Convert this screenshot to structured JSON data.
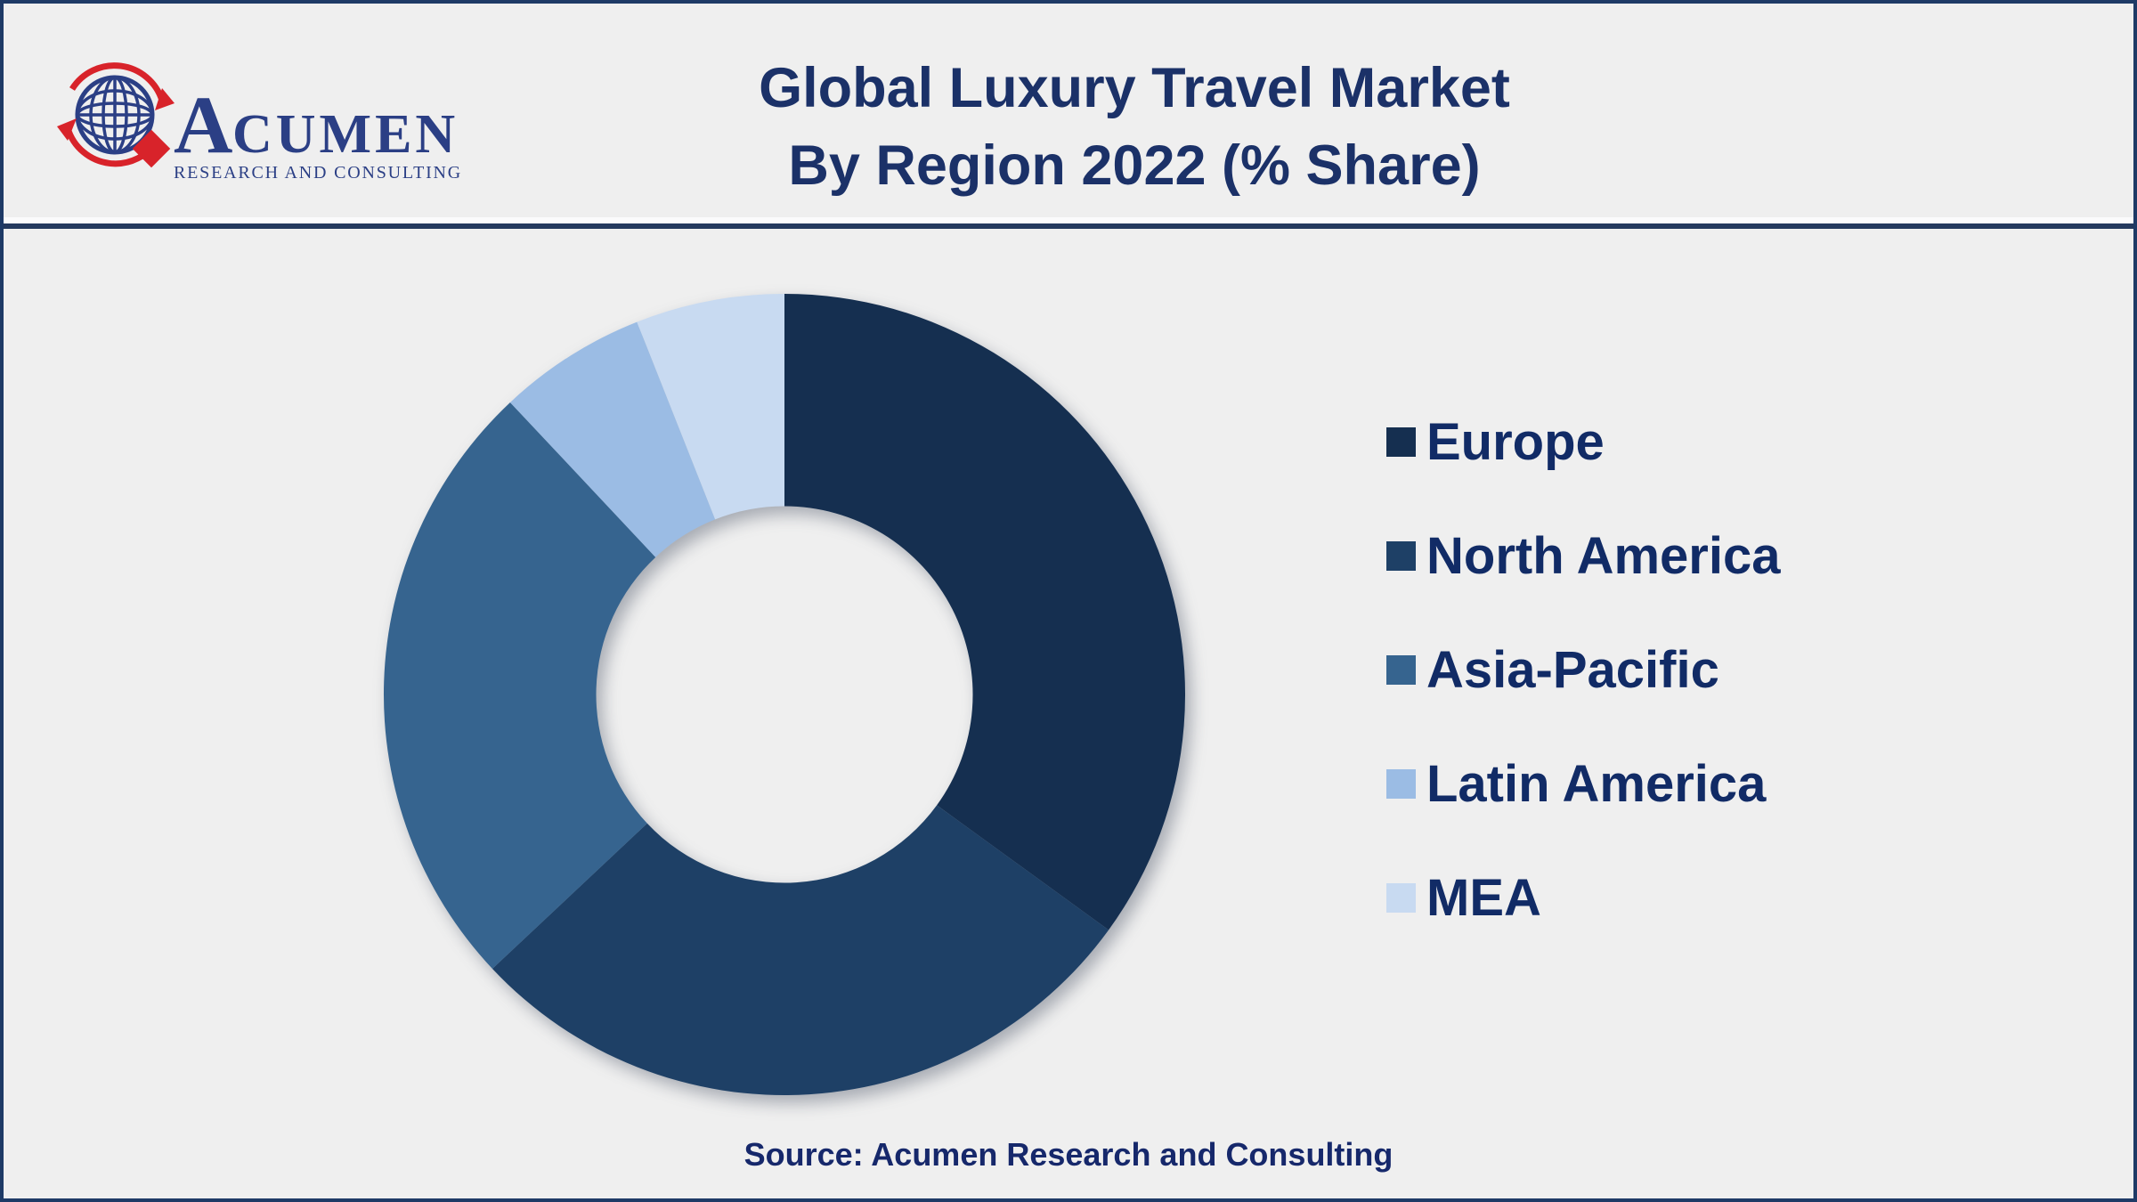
{
  "header": {
    "title_line1": "Global Luxury Travel Market",
    "title_line2": "By Region 2022 (% Share)",
    "title_color": "#1B3168"
  },
  "logo": {
    "brand_name_initial": "A",
    "brand_name_rest": "CUMEN",
    "brand_subtitle": "RESEARCH AND CONSULTING",
    "brand_color": "#2B3F85",
    "accent_red": "#D8232A"
  },
  "chart_data": {
    "type": "pie",
    "subtype": "donut",
    "title": "Global Luxury Travel Market By Region 2022 (% Share)",
    "unit": "% share",
    "categories": [
      "Europe",
      "North America",
      "Asia-Pacific",
      "Latin America",
      "MEA"
    ],
    "values": [
      35,
      28,
      25,
      6,
      6
    ],
    "series": [
      {
        "name": "Europe",
        "value": 35,
        "color": "#152F50"
      },
      {
        "name": "North America",
        "value": 28,
        "color": "#1E4066"
      },
      {
        "name": "Asia-Pacific",
        "value": 25,
        "color": "#36648F"
      },
      {
        "name": "Latin America",
        "value": 6,
        "color": "#9BBCE4"
      },
      {
        "name": "MEA",
        "value": 6,
        "color": "#C8DAF1"
      }
    ],
    "start_angle_deg": 0,
    "direction": "clockwise",
    "inner_radius_ratio": 0.47,
    "legend_position": "right",
    "data_labels": "none"
  },
  "source": {
    "text": "Source: Acumen Research and Consulting"
  },
  "frame": {
    "background": "#EFEFEF",
    "border_color": "#1E3A66",
    "divider_color": "#24395E"
  }
}
